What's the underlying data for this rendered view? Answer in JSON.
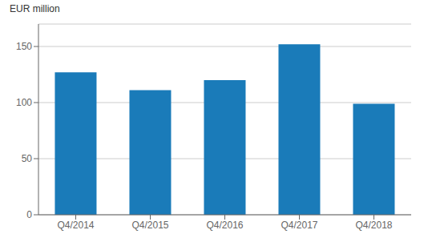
{
  "chart_data": {
    "type": "bar",
    "ylabel": "EUR million",
    "categories": [
      "Q4/2014",
      "Q4/2015",
      "Q4/2016",
      "Q4/2017",
      "Q4/2018"
    ],
    "values": [
      127,
      111,
      120,
      152,
      99
    ],
    "color": "#1a7bb9",
    "ylim": [
      0,
      170
    ],
    "yticks": [
      0,
      50,
      100,
      150
    ],
    "grid": true
  }
}
